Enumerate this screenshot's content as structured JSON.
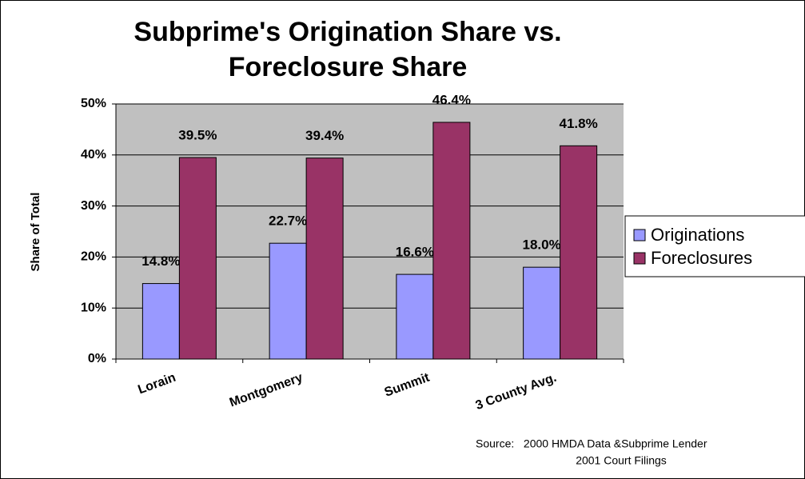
{
  "chart_data": {
    "type": "bar",
    "title": "Subprime's Origination Share vs. Foreclosure Share",
    "y_label": "Share of Total",
    "categories": [
      "Lorain",
      "Montgomery",
      "Summit",
      "3 County Avg."
    ],
    "series": [
      {
        "name": "Originations",
        "color": "#9999ff",
        "values": [
          14.8,
          22.7,
          16.6,
          18.0
        ],
        "value_labels": [
          "14.8%",
          "22.7%",
          "16.6%",
          "18.0%"
        ]
      },
      {
        "name": "Foreclosures",
        "color": "#993366",
        "values": [
          39.5,
          39.4,
          46.4,
          41.8
        ],
        "value_labels": [
          "39.5%",
          "39.4%",
          "46.4%",
          "41.8%"
        ]
      }
    ],
    "ylim": [
      0,
      50
    ],
    "yticks": [
      {
        "value": 0,
        "label": "0%"
      },
      {
        "value": 10,
        "label": "10%"
      },
      {
        "value": 20,
        "label": "20%"
      },
      {
        "value": 30,
        "label": "30%"
      },
      {
        "value": 40,
        "label": "40%"
      },
      {
        "value": 50,
        "label": "50%"
      }
    ],
    "grid": true,
    "legend": "right",
    "source": [
      "Source:   2000 HMDA Data &Subprime Lender",
      "2001 Court Filings"
    ]
  }
}
